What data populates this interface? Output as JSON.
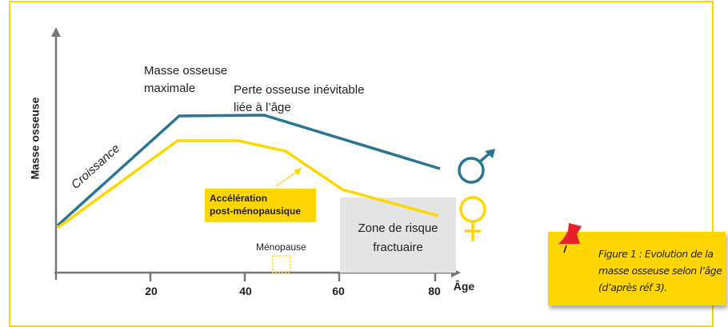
{
  "y_axis_label": "Masse osseuse",
  "x_axis_label": "Âge",
  "x_ticks": [
    "20",
    "40",
    "60",
    "80"
  ],
  "annotations": {
    "peak": "Masse osseuse maximale",
    "peak_line1": "Masse osseuse",
    "peak_line2": "maximale",
    "loss_line1": "Perte osseuse inévitable",
    "loss_line2": "liée à l’âge",
    "growth": "Croissance",
    "accel_line1": "Accélération",
    "accel_line2": "post-ménopausique",
    "menopause": "Ménopause",
    "zone_line1": "Zone de risque",
    "zone_line2": "fractuaire"
  },
  "series": [
    {
      "symbol": "male-symbol",
      "color": "#2a7591"
    },
    {
      "symbol": "female-symbol",
      "color": "#ffd600"
    }
  ],
  "callout": {
    "text": "Figure 1 : Evolution de la masse osseuse selon l’âge (d’après réf 3).",
    "pin_icon": "pushpin",
    "pin_color": "#e8202a"
  },
  "colors": {
    "frame": "#ffd600",
    "zone": "#e4e4e4",
    "axis": "#777777"
  }
}
